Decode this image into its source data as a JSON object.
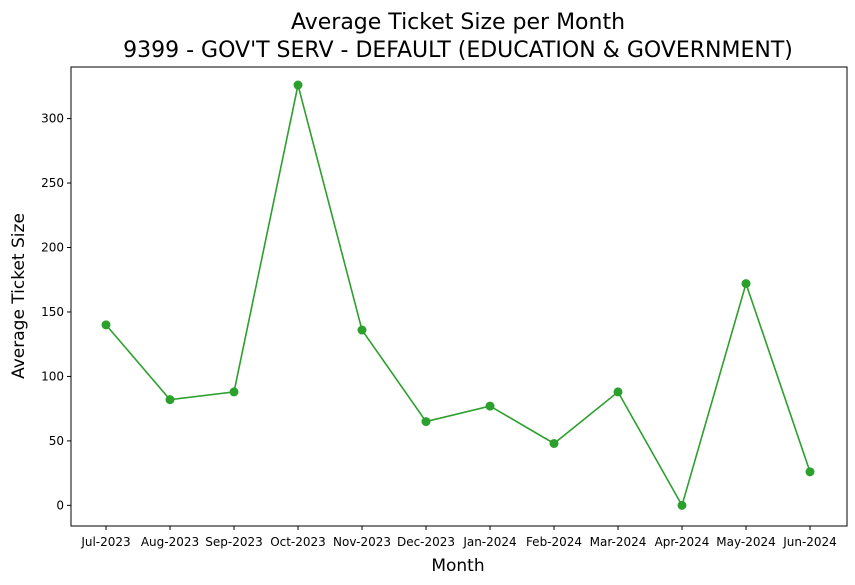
{
  "chart_data": {
    "type": "line",
    "title": "Average Ticket Size per Month",
    "subtitle": "9399 - GOV'T SERV - DEFAULT (EDUCATION & GOVERNMENT)",
    "xlabel": "Month",
    "ylabel": "Average Ticket Size",
    "categories": [
      "Jul-2023",
      "Aug-2023",
      "Sep-2023",
      "Oct-2023",
      "Nov-2023",
      "Dec-2023",
      "Jan-2024",
      "Feb-2024",
      "Mar-2024",
      "Apr-2024",
      "May-2024",
      "Jun-2024"
    ],
    "series": [
      {
        "values": [
          140,
          82,
          88,
          326,
          136,
          65,
          77,
          48,
          88,
          0,
          172,
          26
        ],
        "color": "#2ca02c",
        "marker": "circle"
      }
    ],
    "ylim": [
      -16,
      340
    ],
    "yticks": [
      0,
      50,
      100,
      150,
      200,
      250,
      300
    ],
    "grid": false,
    "legend": "none"
  }
}
